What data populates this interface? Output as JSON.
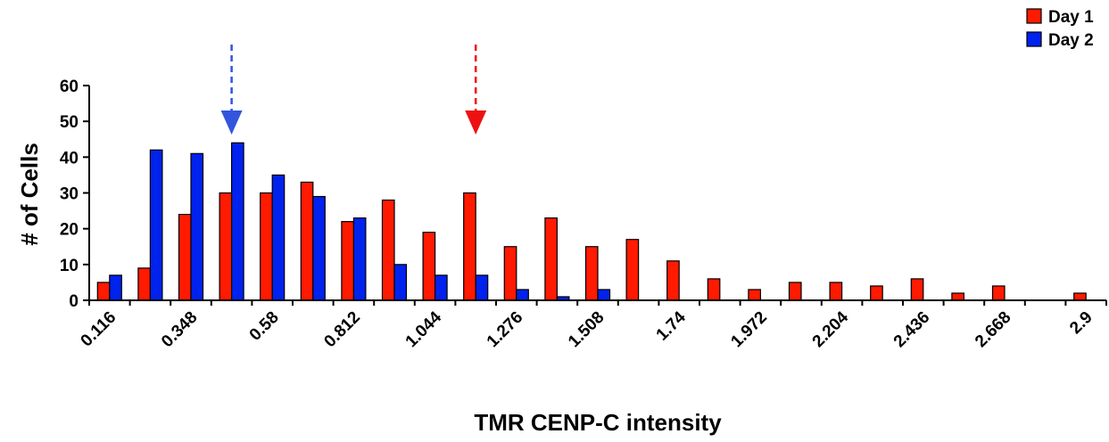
{
  "chart_data": {
    "type": "bar",
    "title": "",
    "xlabel": "TMR CENP-C intensity",
    "ylabel": "# of Cells",
    "ylim": [
      0,
      60
    ],
    "yticks": [
      "0",
      "10",
      "20",
      "30",
      "40",
      "50",
      "60"
    ],
    "ytick_values": [
      0,
      10,
      20,
      30,
      40,
      50,
      60
    ],
    "xtick_labels": [
      "0.116",
      "0.348",
      "0.58",
      "0.812",
      "1.044",
      "1.276",
      "1.508",
      "1.74",
      "1.972",
      "2.204",
      "2.436",
      "2.668",
      "2.9"
    ],
    "num_bins": 25,
    "series": [
      {
        "name": "Day 1",
        "color": "#ff1a00",
        "values": [
          5,
          9,
          24,
          30,
          30,
          33,
          22,
          28,
          19,
          30,
          15,
          23,
          15,
          17,
          11,
          6,
          3,
          5,
          5,
          4,
          6,
          2,
          4,
          0,
          2
        ]
      },
      {
        "name": "Day 2",
        "color": "#0022ee",
        "values": [
          7,
          42,
          41,
          44,
          35,
          29,
          23,
          10,
          7,
          7,
          3,
          1,
          3,
          0,
          0,
          0,
          0,
          0,
          0,
          0,
          0,
          0,
          0,
          0,
          0
        ]
      }
    ],
    "legend_position": "top-right",
    "markers": [
      {
        "series": "Day 2",
        "style": "dashed-arrow-down",
        "color": "#3355dd",
        "bin": 3
      },
      {
        "series": "Day 1",
        "style": "dashed-arrow-down",
        "color": "#ee1111",
        "bin": 9
      }
    ],
    "grid": false
  }
}
